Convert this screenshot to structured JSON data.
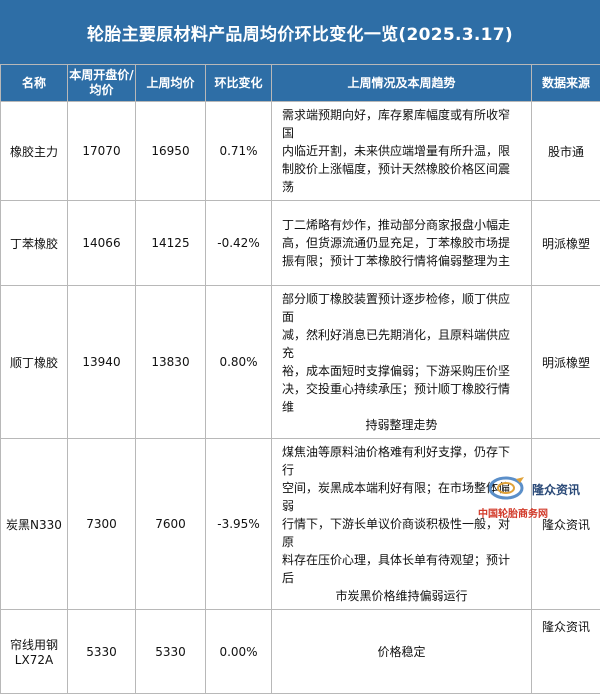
{
  "title": "轮胎主要原材料产品周均价环比变化一览(2025.3.17)",
  "header": {
    "name": "名称",
    "open_price_line1": "本周开盘价/",
    "open_price_line2": "均价",
    "last_week_avg": "上周均价",
    "change": "环比变化",
    "trend": "上周情况及本周趋势",
    "source": "数据来源"
  },
  "rows": [
    {
      "name": "橡胶主力",
      "open_price": "17070",
      "last_week_avg": "16950",
      "change": "0.71%",
      "trend_lines": [
        "需求端预期向好，库存累库幅度或有所收窄国",
        "内临近开割，未来供应端增量有所升温，限",
        "制胶价上涨幅度，预计天然橡胶价格区间震荡"
      ],
      "source": "股市通"
    },
    {
      "name": "丁苯橡胶",
      "open_price": "14066",
      "last_week_avg": "14125",
      "change": "-0.42%",
      "trend_lines": [
        "丁二烯略有炒作，推动部分商家报盘小幅走",
        "高，但货源流通仍显充足，丁苯橡胶市场提",
        "振有限；预计丁苯橡胶行情将偏弱整理为主"
      ],
      "source": "明派橡塑"
    },
    {
      "name": "顺丁橡胶",
      "open_price": "13940",
      "last_week_avg": "13830",
      "change": "0.80%",
      "trend_lines": [
        "部分顺丁橡胶装置预计逐步检修，顺丁供应面",
        "减，然利好消息已先期消化，且原料端供应充",
        "裕，成本面短时支撑偏弱；下游采购压价坚",
        "决，交投重心持续承压；预计顺丁橡胶行情维",
        "持弱整理走势"
      ],
      "source": "明派橡塑"
    },
    {
      "name": "炭黑N330",
      "open_price": "7300",
      "last_week_avg": "7600",
      "change": "-3.95%",
      "trend_lines": [
        "煤焦油等原料油价格难有利好支撑，仍存下行",
        "空间，炭黑成本端利好有限；在市场整体偏弱",
        "行情下，下游长单议价商谈积极性一般，对原",
        "料存在压价心理，具体长单有待观望；预计后",
        "市炭黑价格维持偏弱运行"
      ],
      "source": "隆众资讯"
    },
    {
      "name_line1": "帘线用钢",
      "name_line2": "LX72A",
      "open_price": "5330",
      "last_week_avg": "5330",
      "change": "0.00%",
      "trend_lines": [
        "价格稳定"
      ],
      "source": "隆众资讯"
    }
  ],
  "watermark": {
    "name": "隆众资讯",
    "site": "中国轮胎商务网"
  },
  "colors": {
    "header_bg": "#2e6ea6",
    "header_text": "#ffffff",
    "border": "#b8b8b8"
  }
}
